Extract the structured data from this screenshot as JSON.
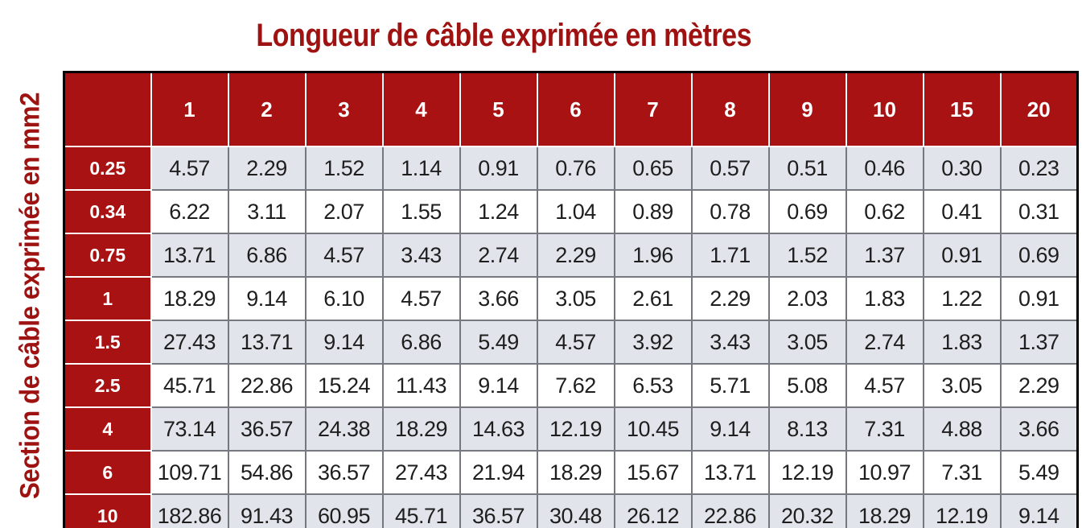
{
  "title": "Longueur de câble exprimée en mètres",
  "side_label": "Section de câble exprimée en mm2",
  "colors": {
    "title_red": "#9e1212",
    "header_red": "#a81212",
    "alt_row": "#e2e4eb",
    "grid_line": "#75787e",
    "text": "#1e1e1e",
    "border": "#000000"
  },
  "chart_data": {
    "type": "table",
    "title": "Longueur de câble exprimée en mètres",
    "column_axis_label": "Longueur de câble exprimée en mètres",
    "row_axis_label": "Section de câble exprimée en mm2",
    "columns": [
      "1",
      "2",
      "3",
      "4",
      "5",
      "6",
      "7",
      "8",
      "9",
      "10",
      "15",
      "20"
    ],
    "rows": [
      {
        "section": "0.25",
        "values": [
          "4.57",
          "2.29",
          "1.52",
          "1.14",
          "0.91",
          "0.76",
          "0.65",
          "0.57",
          "0.51",
          "0.46",
          "0.30",
          "0.23"
        ]
      },
      {
        "section": "0.34",
        "values": [
          "6.22",
          "3.11",
          "2.07",
          "1.55",
          "1.24",
          "1.04",
          "0.89",
          "0.78",
          "0.69",
          "0.62",
          "0.41",
          "0.31"
        ]
      },
      {
        "section": "0.75",
        "values": [
          "13.71",
          "6.86",
          "4.57",
          "3.43",
          "2.74",
          "2.29",
          "1.96",
          "1.71",
          "1.52",
          "1.37",
          "0.91",
          "0.69"
        ]
      },
      {
        "section": "1",
        "values": [
          "18.29",
          "9.14",
          "6.10",
          "4.57",
          "3.66",
          "3.05",
          "2.61",
          "2.29",
          "2.03",
          "1.83",
          "1.22",
          "0.91"
        ]
      },
      {
        "section": "1.5",
        "values": [
          "27.43",
          "13.71",
          "9.14",
          "6.86",
          "5.49",
          "4.57",
          "3.92",
          "3.43",
          "3.05",
          "2.74",
          "1.83",
          "1.37"
        ]
      },
      {
        "section": "2.5",
        "values": [
          "45.71",
          "22.86",
          "15.24",
          "11.43",
          "9.14",
          "7.62",
          "6.53",
          "5.71",
          "5.08",
          "4.57",
          "3.05",
          "2.29"
        ]
      },
      {
        "section": "4",
        "values": [
          "73.14",
          "36.57",
          "24.38",
          "18.29",
          "14.63",
          "12.19",
          "10.45",
          "9.14",
          "8.13",
          "7.31",
          "4.88",
          "3.66"
        ]
      },
      {
        "section": "6",
        "values": [
          "109.71",
          "54.86",
          "36.57",
          "27.43",
          "21.94",
          "18.29",
          "15.67",
          "13.71",
          "12.19",
          "10.97",
          "7.31",
          "5.49"
        ]
      },
      {
        "section": "10",
        "values": [
          "182.86",
          "91.43",
          "60.95",
          "45.71",
          "36.57",
          "30.48",
          "26.12",
          "22.86",
          "20.32",
          "18.29",
          "12.19",
          "9.14"
        ]
      }
    ]
  }
}
